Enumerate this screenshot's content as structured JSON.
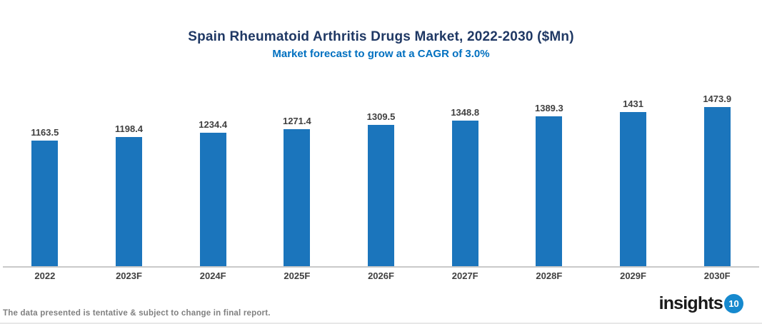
{
  "header": {
    "title": "Spain Rheumatoid Arthritis Drugs Market, 2022-2030 ($Mn)",
    "subtitle": "Market forecast to grow at a CAGR of 3.0%"
  },
  "chart_data": {
    "type": "bar",
    "title": "Spain Rheumatoid Arthritis Drugs Market, 2022-2030 ($Mn)",
    "subtitle": "Market forecast to grow at a CAGR of 3.0%",
    "cagr_percent": 3.0,
    "categories": [
      "2022",
      "2023F",
      "2024F",
      "2025F",
      "2026F",
      "2027F",
      "2028F",
      "2029F",
      "2030F"
    ],
    "values": [
      1163.5,
      1198.4,
      1234.4,
      1271.4,
      1309.5,
      1348.8,
      1389.3,
      1431,
      1473.9
    ],
    "xlabel": "",
    "ylabel": "",
    "ylim": [
      0,
      1473.9
    ],
    "bar_color": "#1B75BC",
    "value_labels_shown": true,
    "gridlines": false,
    "y_axis_shown": false,
    "legend": "none"
  },
  "footer": {
    "disclaimer": "The data presented is tentative & subject to change in final report.",
    "logo_text": "insights",
    "logo_badge": "10"
  },
  "colors": {
    "title": "#1F3864",
    "subtitle": "#0070C0",
    "bar": "#1B75BC",
    "value_label": "#404040",
    "axis_label": "#404040",
    "baseline": "#C9C9C9",
    "disclaimer": "#808080",
    "logo_text": "#1A1A1A",
    "logo_badge_bg": "#1689CE",
    "logo_badge_text": "#FFFFFF"
  }
}
